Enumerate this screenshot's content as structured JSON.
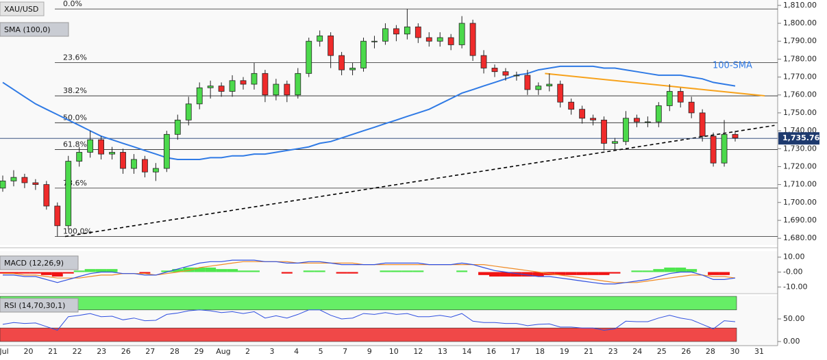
{
  "chart_data": [
    {
      "type": "candlestick",
      "title": "XAU/USD",
      "indicator": "SMA (100,0)",
      "sma_label": "100-SMA",
      "x_labels": [
        "Jul",
        "20",
        "21",
        "22",
        "23",
        "26",
        "27",
        "28",
        "29",
        "Aug",
        "2",
        "3",
        "4",
        "5",
        "7",
        "9",
        "10",
        "12",
        "13",
        "14",
        "16",
        "17",
        "18",
        "19",
        "21",
        "23",
        "24",
        "25",
        "26",
        "28",
        "30",
        "31"
      ],
      "open": [
        1708,
        1712,
        1714,
        1711,
        1710,
        1698,
        1687,
        1723,
        1728,
        1735,
        1727,
        1728,
        1719,
        1724,
        1717,
        1719,
        1738,
        1746,
        1755,
        1764,
        1765,
        1762,
        1768,
        1766,
        1772,
        1760,
        1766,
        1760,
        1772,
        1790,
        1793,
        1782,
        1774,
        1775,
        1790,
        1790,
        1797,
        1794,
        1798,
        1792,
        1790,
        1792,
        1788,
        1800,
        1782,
        1775,
        1773,
        1771,
        1771,
        1763,
        1765,
        1766,
        1756,
        1752,
        1747,
        1746,
        1733,
        1734,
        1747,
        1745,
        1745,
        1754,
        1762,
        1756,
        1750,
        1737,
        1722,
        1738
      ],
      "high": [
        1715,
        1718,
        1716,
        1713,
        1712,
        1700,
        1726,
        1731,
        1740,
        1737,
        1731,
        1730,
        1727,
        1726,
        1722,
        1740,
        1749,
        1759,
        1767,
        1768,
        1767,
        1771,
        1770,
        1778,
        1774,
        1769,
        1768,
        1775,
        1792,
        1796,
        1795,
        1784,
        1778,
        1792,
        1793,
        1800,
        1799,
        1808,
        1800,
        1795,
        1795,
        1794,
        1804,
        1802,
        1785,
        1777,
        1775,
        1773,
        1774,
        1767,
        1772,
        1768,
        1758,
        1754,
        1749,
        1748,
        1736,
        1751,
        1749,
        1748,
        1756,
        1766,
        1764,
        1759,
        1752,
        1739,
        1746,
        1740
      ],
      "low": [
        1706,
        1709,
        1708,
        1707,
        1696,
        1681,
        1685,
        1720,
        1725,
        1724,
        1724,
        1716,
        1716,
        1714,
        1712,
        1717,
        1735,
        1743,
        1752,
        1758,
        1759,
        1759,
        1763,
        1763,
        1756,
        1757,
        1756,
        1758,
        1770,
        1787,
        1775,
        1771,
        1771,
        1773,
        1786,
        1788,
        1790,
        1791,
        1789,
        1787,
        1787,
        1785,
        1786,
        1779,
        1772,
        1770,
        1768,
        1768,
        1760,
        1760,
        1762,
        1753,
        1749,
        1744,
        1743,
        1729,
        1729,
        1732,
        1742,
        1742,
        1742,
        1751,
        1753,
        1747,
        1734,
        1720,
        1720,
        1734
      ],
      "close": [
        1712,
        1714,
        1711,
        1710,
        1698,
        1687,
        1723,
        1728,
        1735,
        1727,
        1728,
        1719,
        1724,
        1717,
        1719,
        1738,
        1746,
        1755,
        1764,
        1765,
        1762,
        1768,
        1766,
        1772,
        1760,
        1766,
        1760,
        1772,
        1790,
        1793,
        1782,
        1774,
        1775,
        1790,
        1790,
        1797,
        1794,
        1798,
        1792,
        1790,
        1792,
        1788,
        1800,
        1782,
        1775,
        1773,
        1771,
        1771,
        1763,
        1765,
        1766,
        1756,
        1752,
        1747,
        1746,
        1733,
        1734,
        1747,
        1745,
        1745,
        1754,
        1762,
        1756,
        1750,
        1737,
        1722,
        1738,
        1736
      ],
      "sma": {
        "color": "#2f7ae5",
        "values": [
          1767,
          1763,
          1759,
          1755,
          1752,
          1749,
          1746,
          1743,
          1740,
          1737,
          1735,
          1733,
          1731,
          1729,
          1727,
          1725,
          1724,
          1724,
          1724,
          1725,
          1725,
          1726,
          1726,
          1727,
          1727,
          1728,
          1729,
          1730,
          1731,
          1733,
          1734,
          1736,
          1738,
          1740,
          1742,
          1744,
          1746,
          1748,
          1750,
          1752,
          1755,
          1758,
          1761,
          1763,
          1765,
          1767,
          1769,
          1771,
          1772,
          1774,
          1775,
          1776,
          1776,
          1776,
          1776,
          1775,
          1775,
          1774,
          1773,
          1772,
          1771,
          1771,
          1771,
          1770,
          1769,
          1767,
          1766,
          1765
        ]
      },
      "fib_levels": [
        {
          "label": "0.0%",
          "value": 1808
        },
        {
          "label": "23.6%",
          "value": 1778
        },
        {
          "label": "38.2%",
          "value": 1759.5
        },
        {
          "label": "50.0%",
          "value": 1744.5
        },
        {
          "label": "61.8%",
          "value": 1729.5
        },
        {
          "label": "78.6%",
          "value": 1708
        },
        {
          "label": "100.0%",
          "value": 1681
        }
      ],
      "trend_lines": [
        {
          "color": "#000000",
          "dashed": true,
          "from": [
            5.7,
            1681
          ],
          "to": [
            70.6,
            1743
          ]
        },
        {
          "color": "#f7a21b",
          "dashed": false,
          "from": [
            49.6,
            1772
          ],
          "to": [
            69.7,
            1759.5
          ]
        }
      ],
      "last_price": {
        "value": 1735.76,
        "label": "1,735.76"
      },
      "up_color": "#4cd94c",
      "down_color": "#ef2b2b",
      "ylim": [
        1677,
        1813
      ],
      "yticks": [
        {
          "value": 1680,
          "label": "1,680.00"
        },
        {
          "value": 1690,
          "label": "1,690.00"
        },
        {
          "value": 1700,
          "label": "1,700.00"
        },
        {
          "value": 1710,
          "label": "1,710.00"
        },
        {
          "value": 1720,
          "label": "1,720.00"
        },
        {
          "value": 1730,
          "label": "1,730.00"
        },
        {
          "value": 1740,
          "label": "1,740.00"
        },
        {
          "value": 1750,
          "label": "1,750.00"
        },
        {
          "value": 1760,
          "label": "1,760.00"
        },
        {
          "value": 1770,
          "label": "1,770.00"
        },
        {
          "value": 1780,
          "label": "1,780.00"
        },
        {
          "value": 1790,
          "label": "1,790.00"
        },
        {
          "value": 1800,
          "label": "1,800.00"
        },
        {
          "value": 1810,
          "label": "1,810.00"
        }
      ]
    },
    {
      "type": "macd",
      "title": "MACD (12,26,9)",
      "macd": {
        "color": "#2f4fe0",
        "values": [
          -2,
          -2,
          -3,
          -3,
          -5,
          -7,
          -5,
          -3,
          -1,
          0,
          0,
          -1,
          -1,
          -2,
          -2,
          0,
          2,
          4,
          6,
          7,
          7,
          8,
          8,
          8,
          7,
          7,
          6,
          6,
          7,
          7,
          6,
          5,
          5,
          5,
          5,
          6,
          6,
          6,
          6,
          5,
          5,
          5,
          6,
          5,
          3,
          1,
          0,
          -1,
          -2,
          -3,
          -3,
          -4,
          -5,
          -6,
          -7,
          -8,
          -8,
          -7,
          -6,
          -5,
          -3,
          -1,
          0,
          0,
          -2,
          -5,
          -5,
          -4
        ]
      },
      "signal": {
        "color": "#f08a24",
        "values": [
          -1,
          -1,
          -2,
          -2,
          -3,
          -4,
          -4,
          -4,
          -3,
          -2,
          -2,
          -1,
          -1,
          -1,
          -2,
          -1,
          0,
          1,
          3,
          4,
          5,
          6,
          7,
          7,
          7,
          7,
          7,
          6,
          6,
          6,
          6,
          6,
          6,
          5,
          5,
          5,
          5,
          5,
          5,
          5,
          5,
          5,
          5,
          5,
          5,
          4,
          3,
          2,
          1,
          0,
          -1,
          -2,
          -3,
          -4,
          -5,
          -6,
          -7,
          -7,
          -7,
          -6,
          -5,
          -4,
          -3,
          -2,
          -2,
          -3,
          -3,
          -4
        ]
      },
      "histogram": {
        "up_color": "#4ee64e",
        "down_color": "#f01414",
        "values": [
          -1,
          -1,
          -1,
          -1,
          -2,
          -3,
          -1,
          1,
          2,
          2,
          2,
          0,
          0,
          -1,
          0,
          1,
          2,
          3,
          3,
          3,
          2,
          2,
          1,
          1,
          0,
          0,
          -1,
          0,
          1,
          1,
          0,
          -1,
          -1,
          0,
          0,
          1,
          1,
          1,
          1,
          0,
          0,
          0,
          1,
          0,
          -2,
          -3,
          -3,
          -3,
          -3,
          -3,
          -2,
          -2,
          -2,
          -2,
          -2,
          -2,
          -1,
          0,
          1,
          1,
          2,
          3,
          3,
          2,
          0,
          -2,
          -2,
          0
        ]
      },
      "ylim": [
        -14,
        14
      ],
      "yticks": [
        {
          "value": 10,
          "label": "10.00"
        },
        {
          "value": 0,
          "label": "-0.00"
        },
        {
          "value": -10,
          "label": "-10.00"
        }
      ]
    },
    {
      "type": "rsi",
      "title": "RSI (14,70,30,1)",
      "color": "#2f4fe0",
      "values": [
        38,
        42,
        40,
        41,
        33,
        25,
        55,
        58,
        62,
        55,
        56,
        48,
        52,
        46,
        47,
        60,
        63,
        68,
        70,
        68,
        64,
        66,
        62,
        66,
        52,
        57,
        52,
        60,
        70,
        70,
        58,
        50,
        52,
        62,
        60,
        64,
        60,
        62,
        55,
        55,
        58,
        54,
        62,
        45,
        42,
        42,
        40,
        40,
        35,
        38,
        39,
        32,
        32,
        30,
        30,
        25,
        28,
        45,
        44,
        44,
        52,
        58,
        52,
        48,
        38,
        28,
        46,
        44
      ],
      "overbought": 70,
      "oversold": 30,
      "ob_color": "#66ee66",
      "os_color": "#f04848",
      "ylim": [
        0,
        100
      ],
      "yticks": [
        {
          "value": 50,
          "label": "50.00"
        },
        {
          "value": 0,
          "label": "0.00"
        }
      ]
    }
  ]
}
